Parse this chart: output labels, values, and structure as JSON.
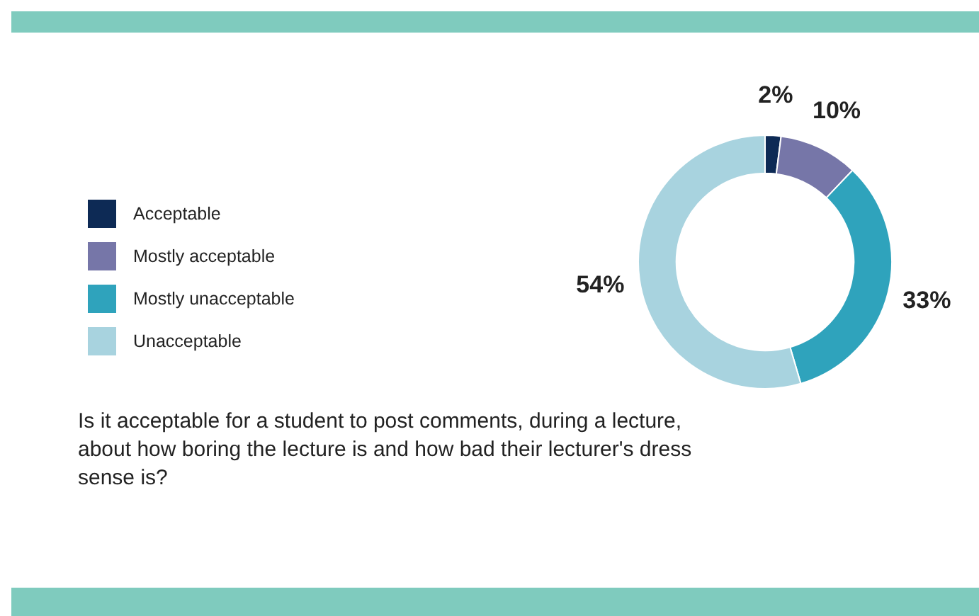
{
  "chart_data": {
    "type": "donut",
    "title": "Is it acceptable for a student to post comments, during a lecture, about how boring the lecture is and how bad their lecturer's dress sense is?",
    "categories": [
      "Acceptable",
      "Mostly acceptable",
      "Mostly unacceptable",
      "Unacceptable"
    ],
    "values": [
      2,
      10,
      33,
      54
    ],
    "colors": [
      "#0d2a55",
      "#7676a8",
      "#2fa3bc",
      "#a8d3df"
    ],
    "value_labels": [
      "2%",
      "10%",
      "33%",
      "54%"
    ],
    "legend": "left"
  }
}
